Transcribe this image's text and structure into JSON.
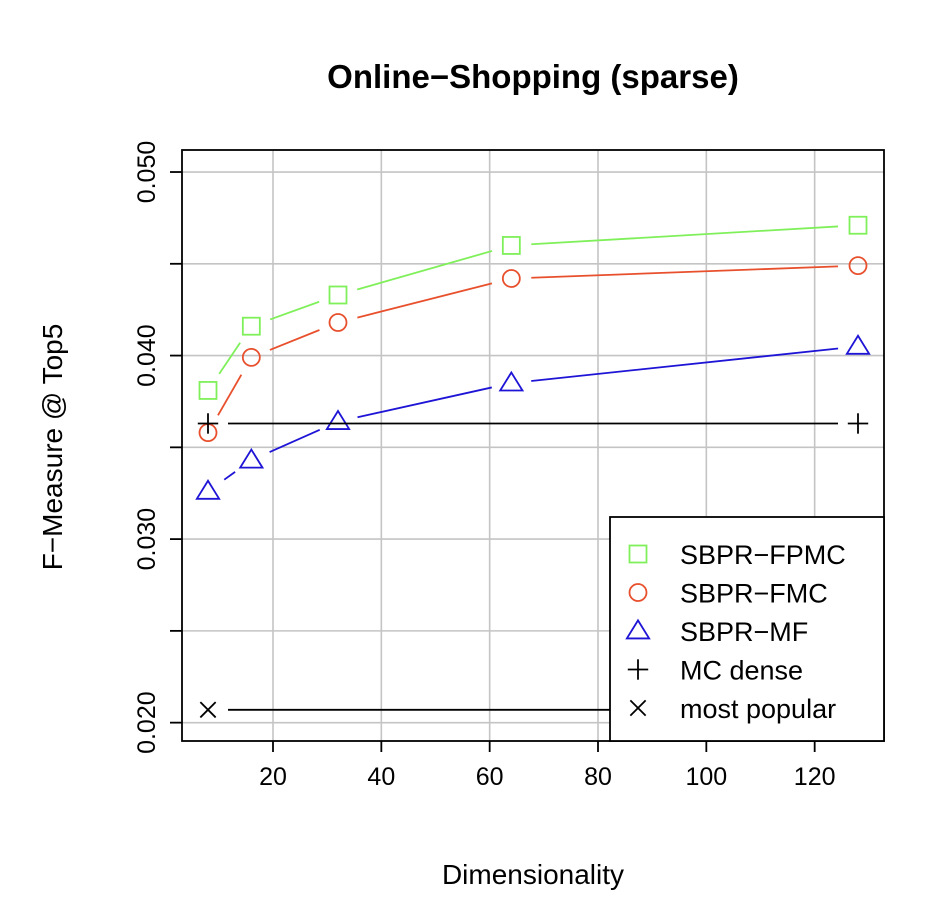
{
  "chart_data": {
    "type": "line",
    "title": "Online−Shopping (sparse)",
    "xlabel": "Dimensionality",
    "ylabel": "F−Measure @ Top5",
    "xlim": [
      3.2,
      132.8
    ],
    "ylim": [
      0.019,
      0.0512
    ],
    "x_ticks": [
      20,
      40,
      60,
      80,
      100,
      120
    ],
    "x_tick_labels": [
      "20",
      "40",
      "60",
      "80",
      "100",
      "120"
    ],
    "y_ticks": [
      0.02,
      0.025,
      0.03,
      0.035,
      0.04,
      0.045,
      0.05
    ],
    "y_tick_labels": [
      "0.020",
      "",
      "0.030",
      "",
      "0.040",
      "",
      "0.050"
    ],
    "grid": true,
    "legend_position": "bottom-right",
    "series": [
      {
        "name": "SBPR−FPMC",
        "color": "#7ff05a",
        "marker": "square",
        "connected": true,
        "x": [
          8,
          16,
          32,
          64,
          128
        ],
        "y": [
          0.0381,
          0.0416,
          0.0433,
          0.046,
          0.0471
        ]
      },
      {
        "name": "SBPR−FMC",
        "color": "#e8502d",
        "marker": "circle",
        "connected": true,
        "x": [
          8,
          16,
          32,
          64,
          128
        ],
        "y": [
          0.0358,
          0.0399,
          0.0418,
          0.0442,
          0.0449
        ]
      },
      {
        "name": "SBPR−MF",
        "color": "#1e14d6",
        "marker": "triangle",
        "connected": true,
        "x": [
          8,
          16,
          32,
          64,
          128
        ],
        "y": [
          0.0326,
          0.0343,
          0.0364,
          0.0385,
          0.0405
        ]
      },
      {
        "name": "MC dense",
        "color": "#000000",
        "marker": "plus",
        "connected": false,
        "x": [
          8,
          128
        ],
        "y": [
          0.0363,
          0.0363
        ]
      },
      {
        "name": "most popular",
        "color": "#000000",
        "marker": "cross",
        "connected": false,
        "x": [
          8,
          128
        ],
        "y": [
          0.0207,
          0.0207
        ]
      }
    ]
  }
}
